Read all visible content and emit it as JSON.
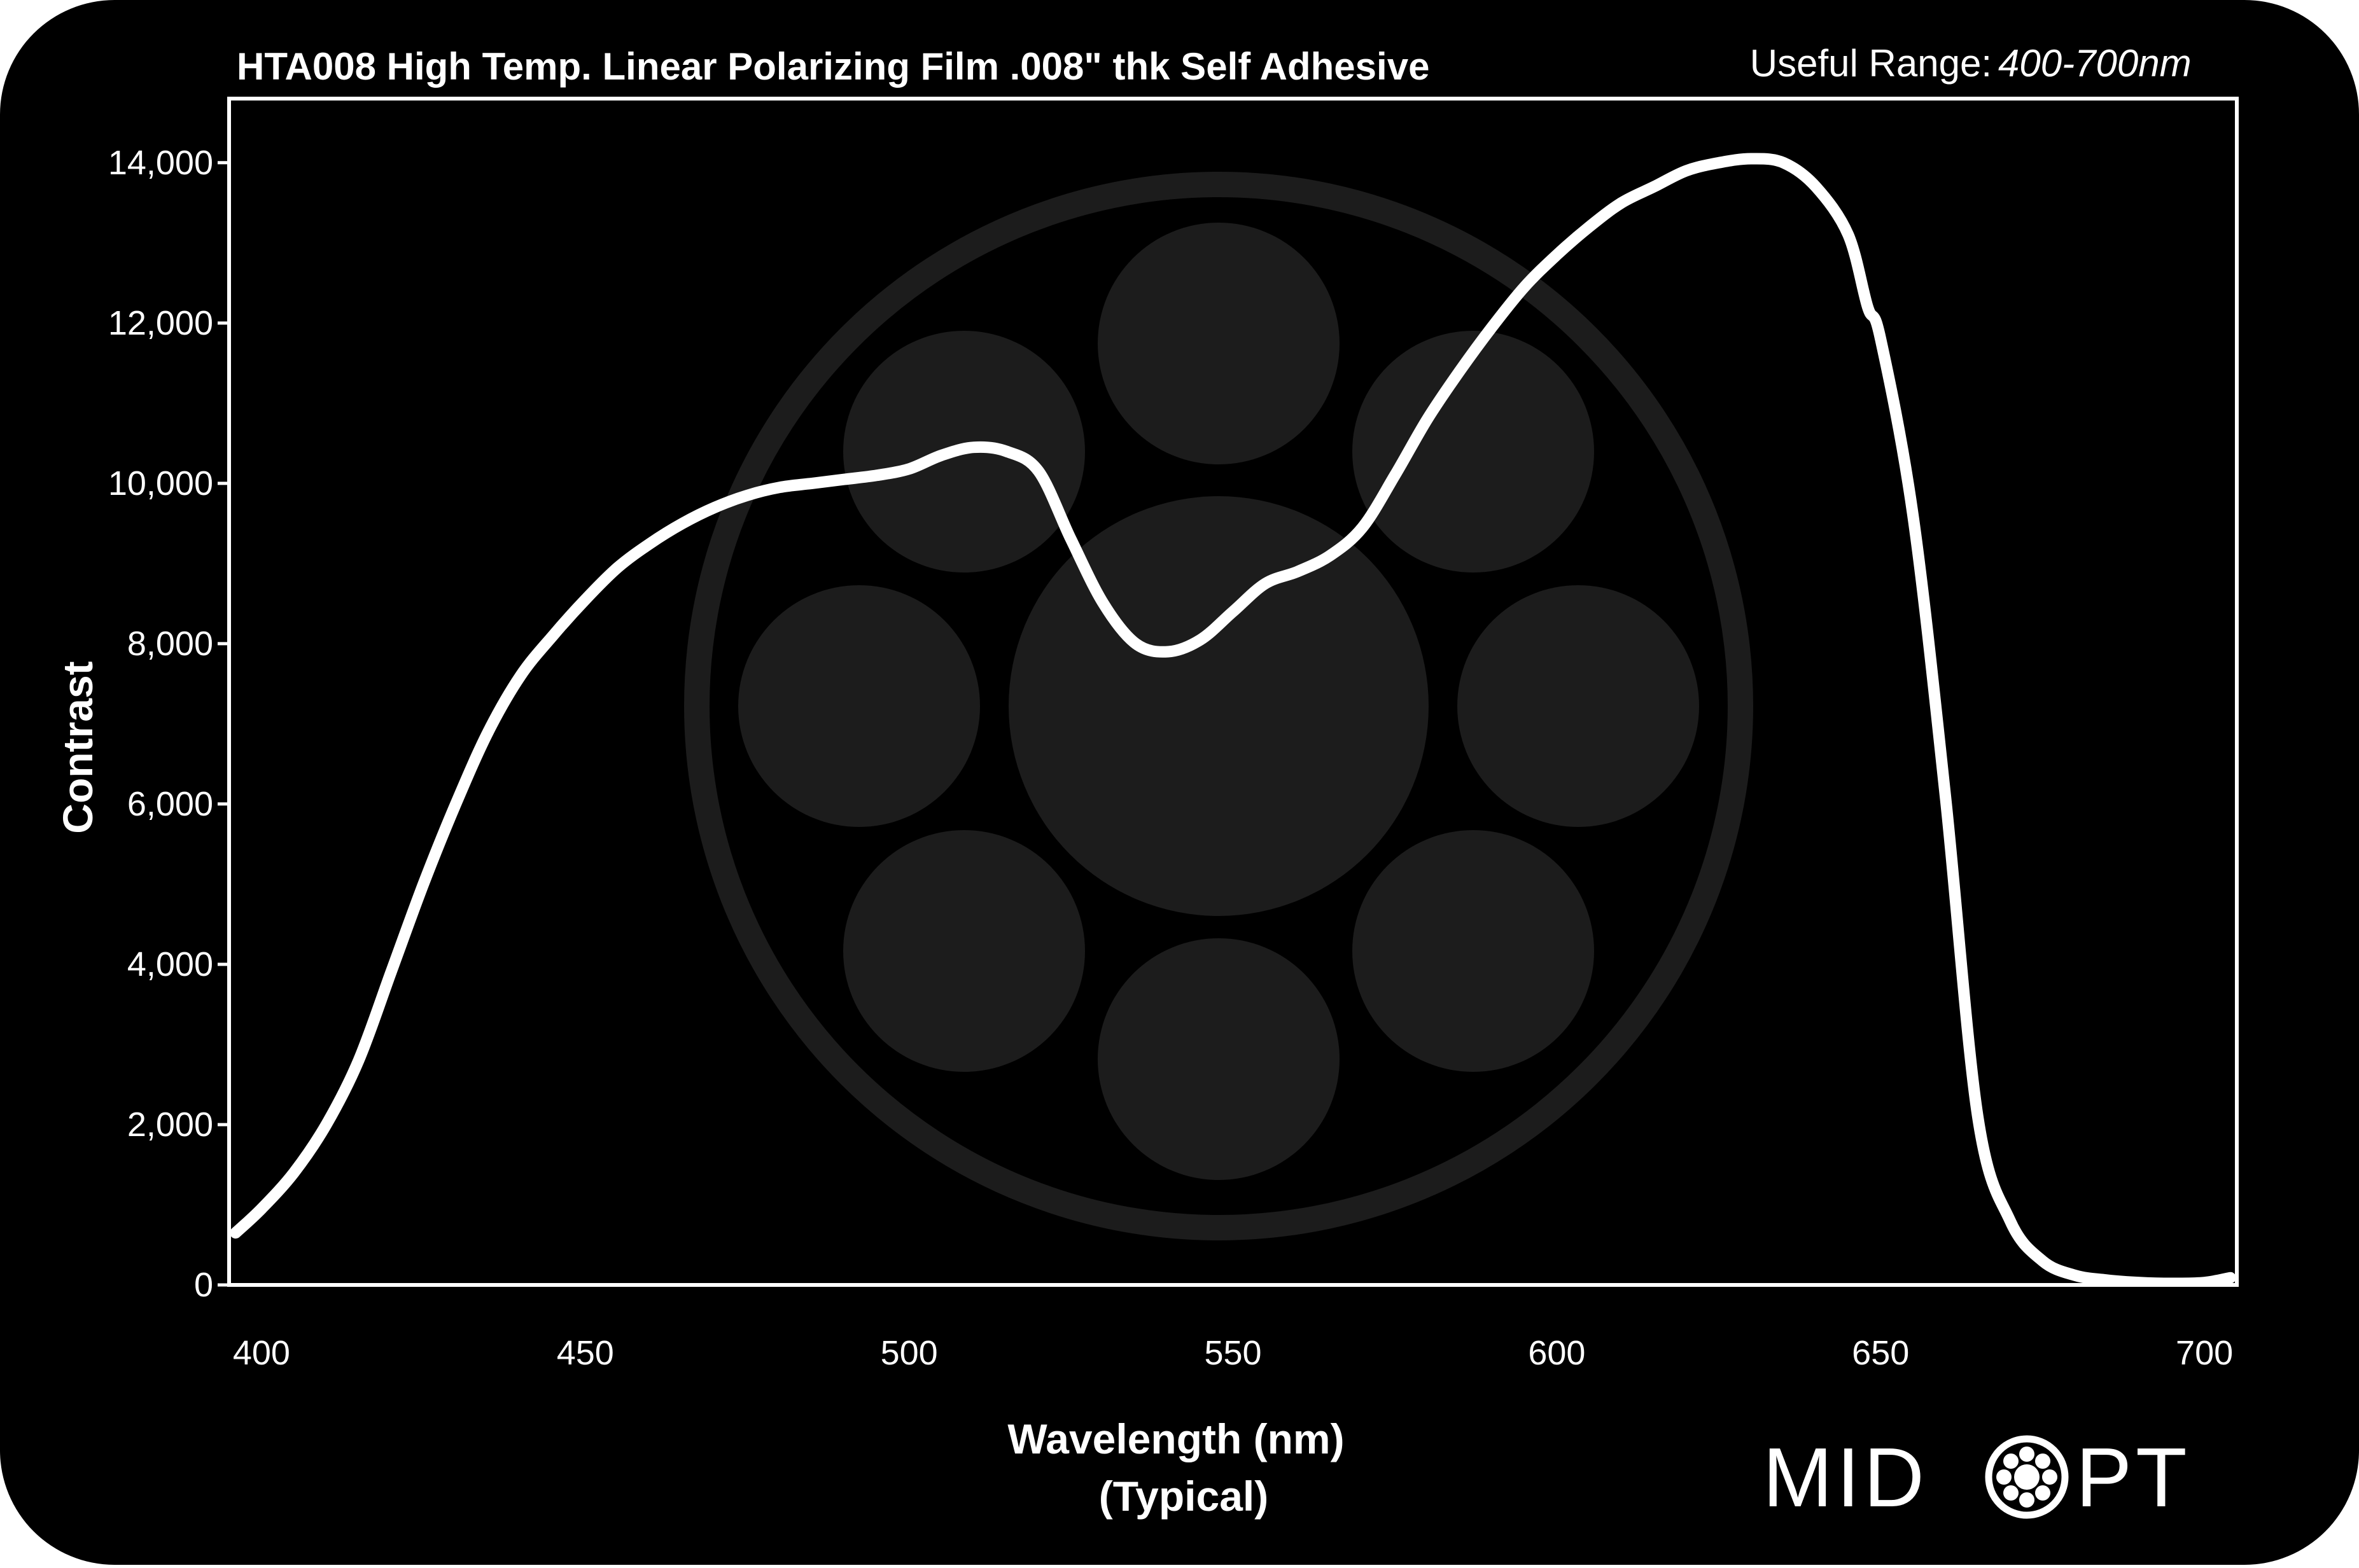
{
  "header": {
    "title": "HTA008 High Temp. Linear Polarizing Film .008\" thk Self Adhesive",
    "useful_range_label": "Useful Range:",
    "useful_range_value": "400-700nm"
  },
  "brand": {
    "logo_left": "MID",
    "logo_right": "PT"
  },
  "colors": {
    "background": "#000000",
    "line": "#ffffff",
    "watermark": "#1c1c1c"
  },
  "chart_data": {
    "type": "line",
    "title": "HTA008 High Temp. Linear Polarizing Film .008\" thk Self Adhesive",
    "xlabel": "Wavelength (nm)",
    "xlabel_sub": "(Typical)",
    "ylabel": "Contrast",
    "xlim": [
      395,
      705
    ],
    "ylim": [
      0,
      14800
    ],
    "x_ticks": [
      400,
      450,
      500,
      550,
      600,
      650,
      700
    ],
    "x_tick_labels": [
      "400",
      "450",
      "500",
      "550",
      "600",
      "650",
      "700"
    ],
    "y_ticks": [
      0,
      2000,
      4000,
      6000,
      8000,
      10000,
      12000,
      14000
    ],
    "y_tick_labels": [
      "0",
      "2,000",
      "4,000",
      "6,000",
      "8,000",
      "10,000",
      "12,000",
      "14,000"
    ],
    "grid": false,
    "legend": "none",
    "series": [
      {
        "x": [
          396,
          400,
          405,
          410,
          415,
          420,
          425,
          430,
          435,
          440,
          445,
          450,
          455,
          460,
          465,
          470,
          475,
          480,
          485,
          490,
          495,
          500,
          505,
          510,
          515,
          520,
          525,
          530,
          535,
          540,
          545,
          550,
          555,
          560,
          565,
          570,
          575,
          580,
          585,
          590,
          595,
          600,
          605,
          610,
          615,
          620,
          625,
          630,
          635,
          640,
          645,
          648,
          650,
          655,
          660,
          665,
          670,
          675,
          680,
          685,
          690,
          695,
          700,
          704
        ],
        "y": [
          650,
          950,
          1400,
          2000,
          2800,
          3900,
          5000,
          6000,
          6900,
          7600,
          8100,
          8550,
          8950,
          9250,
          9500,
          9700,
          9850,
          9950,
          10000,
          10050,
          10100,
          10180,
          10350,
          10450,
          10400,
          10150,
          9300,
          8500,
          8000,
          7900,
          8050,
          8400,
          8750,
          8900,
          9100,
          9450,
          10100,
          10800,
          11400,
          11950,
          12450,
          12850,
          13200,
          13500,
          13700,
          13900,
          14000,
          14050,
          14000,
          13700,
          13100,
          12200,
          11800,
          9600,
          6100,
          2100,
          800,
          300,
          120,
          60,
          30,
          20,
          30,
          90
        ]
      }
    ]
  }
}
